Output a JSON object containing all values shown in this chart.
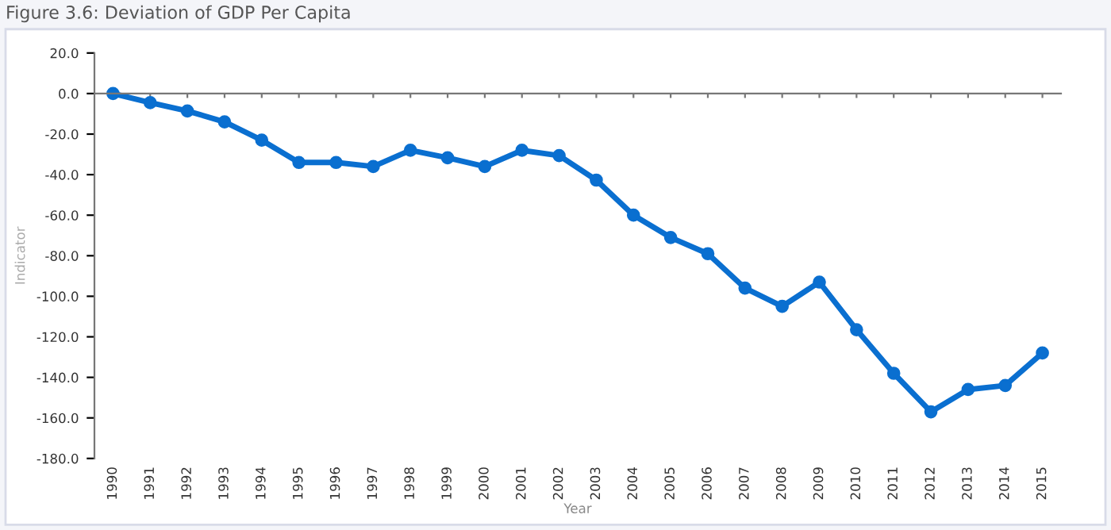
{
  "chart_data": {
    "type": "line",
    "title": "Figure 3.6: Deviation of GDP Per Capita",
    "xlabel": "Year",
    "ylabel": "Indicator",
    "categories": [
      "1990",
      "1991",
      "1992",
      "1993",
      "1994",
      "1995",
      "1996",
      "1997",
      "1998",
      "1999",
      "2000",
      "2001",
      "2002",
      "2003",
      "2004",
      "2005",
      "2006",
      "2007",
      "2008",
      "2009",
      "2010",
      "2011",
      "2012",
      "2013",
      "2014",
      "2015"
    ],
    "series": [
      {
        "color": "#0a6fd0",
        "values": [
          0,
          -4.5,
          -8.6,
          -14,
          -23,
          -34,
          -34,
          -36,
          -28,
          -31.7,
          -36,
          -28,
          -30.6,
          -42.7,
          -60,
          -71,
          -79,
          -96,
          -105,
          -93,
          -116.5,
          -138,
          -157,
          -146,
          -144,
          -128
        ]
      }
    ],
    "ylim": [
      -180,
      20
    ],
    "yticks": [
      {
        "value": 20,
        "label": "20.0"
      },
      {
        "value": 0,
        "label": "0.0"
      },
      {
        "value": -20,
        "label": "-20.0"
      },
      {
        "value": -40,
        "label": "-40.0"
      },
      {
        "value": -60,
        "label": "-60.0"
      },
      {
        "value": -80,
        "label": "-80.0"
      },
      {
        "value": -100,
        "label": "-100.0"
      },
      {
        "value": -120,
        "label": "-120.0"
      },
      {
        "value": -140,
        "label": "-140.0"
      },
      {
        "value": -160,
        "label": "-160.0"
      },
      {
        "value": -180,
        "label": "-180.0"
      }
    ],
    "marker": "circle",
    "line_style": "solid",
    "legend": false
  }
}
